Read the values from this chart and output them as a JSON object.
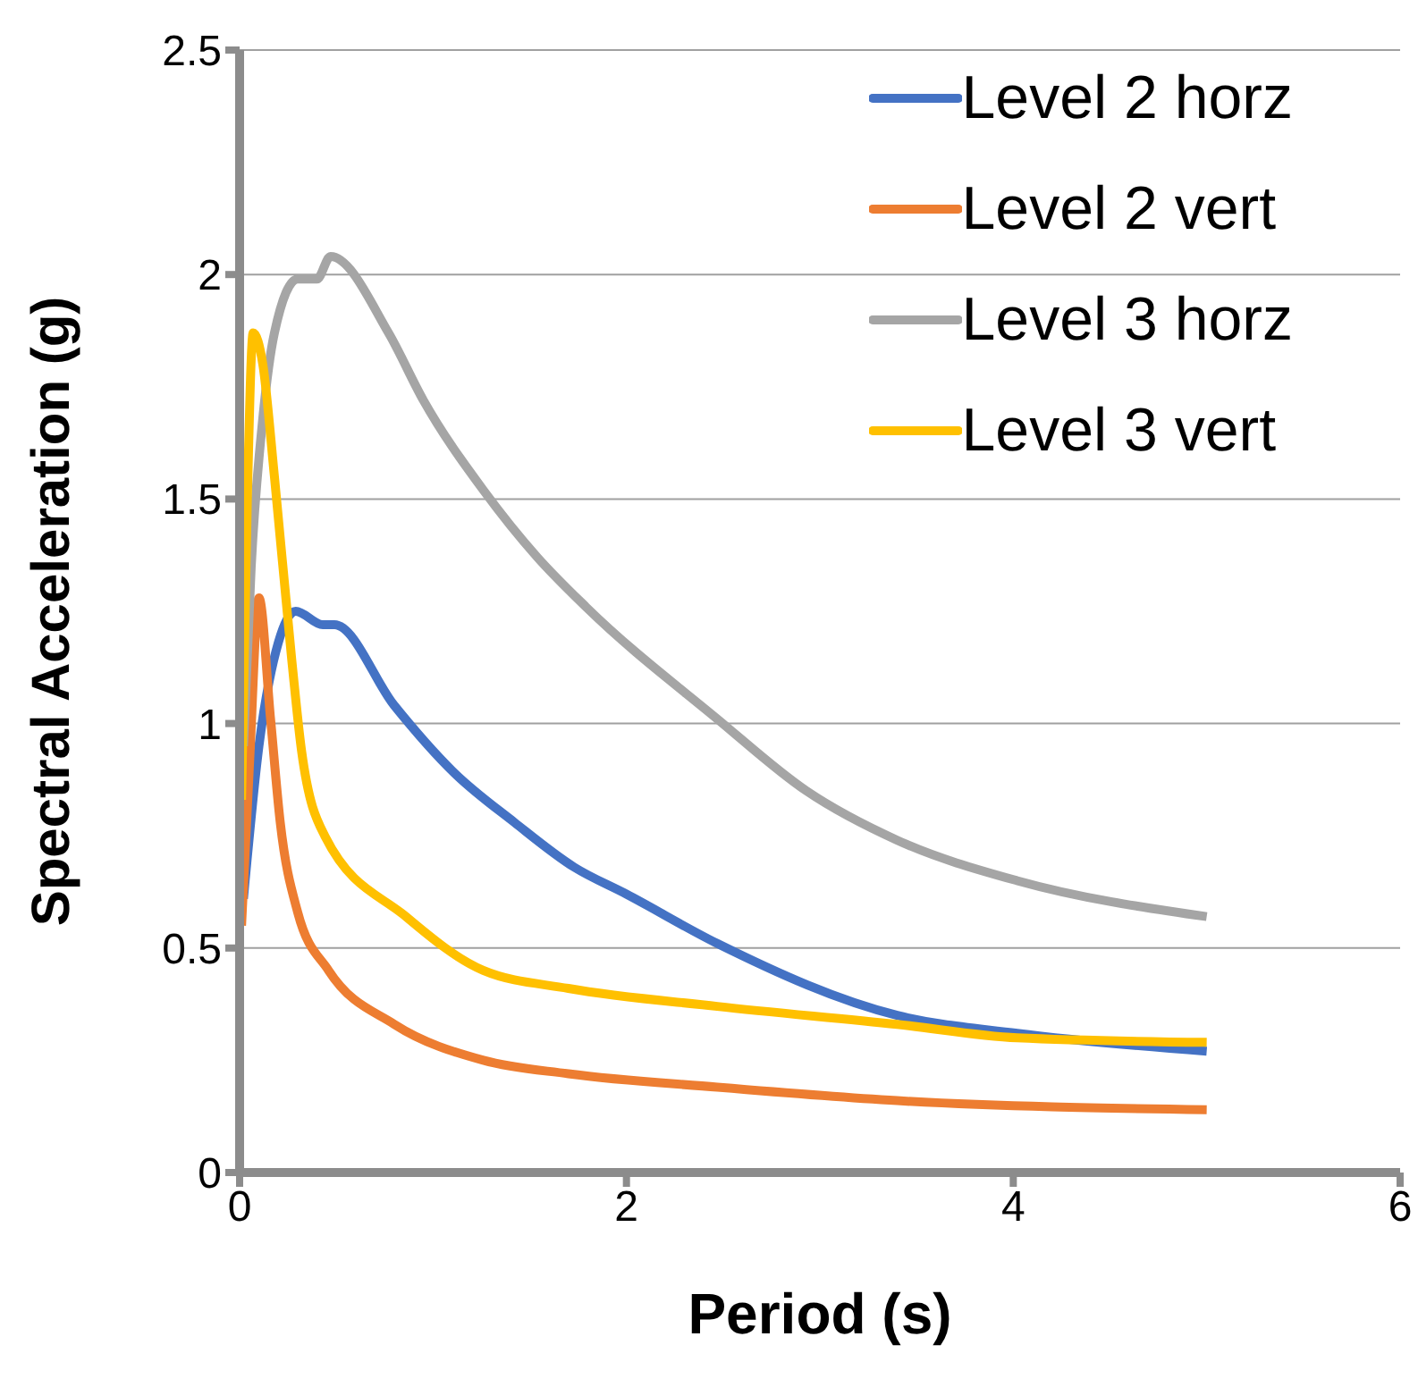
{
  "chart_data": {
    "type": "line",
    "xlabel": "Period (s)",
    "ylabel": "Spectral Acceleration (g)",
    "xlim": [
      0,
      6
    ],
    "xticks": [
      0,
      2,
      4,
      6
    ],
    "ylim": [
      0,
      2.5
    ],
    "yticks": [
      0,
      0.5,
      1,
      1.5,
      2,
      2.5
    ],
    "grid": "y",
    "legend": "top right",
    "marker": "none",
    "line_style": "solid",
    "series": [
      {
        "name": "Level 2 horz",
        "color": "#4472c4",
        "x": [
          0.02,
          0.1,
          0.2,
          0.29,
          0.43,
          0.49,
          0.8,
          1.11,
          1.42,
          1.73,
          2.0,
          2.47,
          3.4,
          4.02,
          5
        ],
        "values": [
          0.61,
          0.95,
          1.18,
          1.25,
          1.22,
          1.22,
          1.04,
          0.89,
          0.78,
          0.68,
          0.62,
          0.51,
          0.35,
          0.31,
          0.27
        ]
      },
      {
        "name": "Level 2 vert",
        "color": "#ed7d31",
        "x": [
          0.01,
          0.05,
          0.1,
          0.16,
          0.21,
          0.3,
          0.46,
          0.8,
          1.26,
          1.7,
          2.47,
          3.4,
          5
        ],
        "values": [
          0.55,
          0.9,
          1.28,
          1.01,
          0.78,
          0.58,
          0.45,
          0.33,
          0.25,
          0.22,
          0.19,
          0.16,
          0.14
        ]
      },
      {
        "name": "Level 3 horz",
        "color": "#a5a5a5",
        "x": [
          0.02,
          0.06,
          0.12,
          0.18,
          0.3,
          0.4,
          0.47,
          0.77,
          0.95,
          1.26,
          1.54,
          1.79,
          2.47,
          2.93,
          3.4,
          4.02,
          5
        ],
        "values": [
          0.95,
          1.35,
          1.68,
          1.87,
          1.99,
          1.99,
          2.04,
          1.87,
          1.72,
          1.52,
          1.37,
          1.26,
          1.01,
          0.85,
          0.74,
          0.65,
          0.57
        ]
      },
      {
        "name": "Level 3 vert",
        "color": "#ffc000",
        "x": [
          0.01,
          0.04,
          0.07,
          0.12,
          0.18,
          0.27,
          0.32,
          0.44,
          0.86,
          1.26,
          1.7,
          2.47,
          3.4,
          4.02,
          5
        ],
        "values": [
          0.83,
          1.5,
          1.87,
          1.8,
          1.55,
          1.14,
          0.94,
          0.75,
          0.57,
          0.45,
          0.41,
          0.37,
          0.33,
          0.3,
          0.29
        ]
      }
    ]
  }
}
